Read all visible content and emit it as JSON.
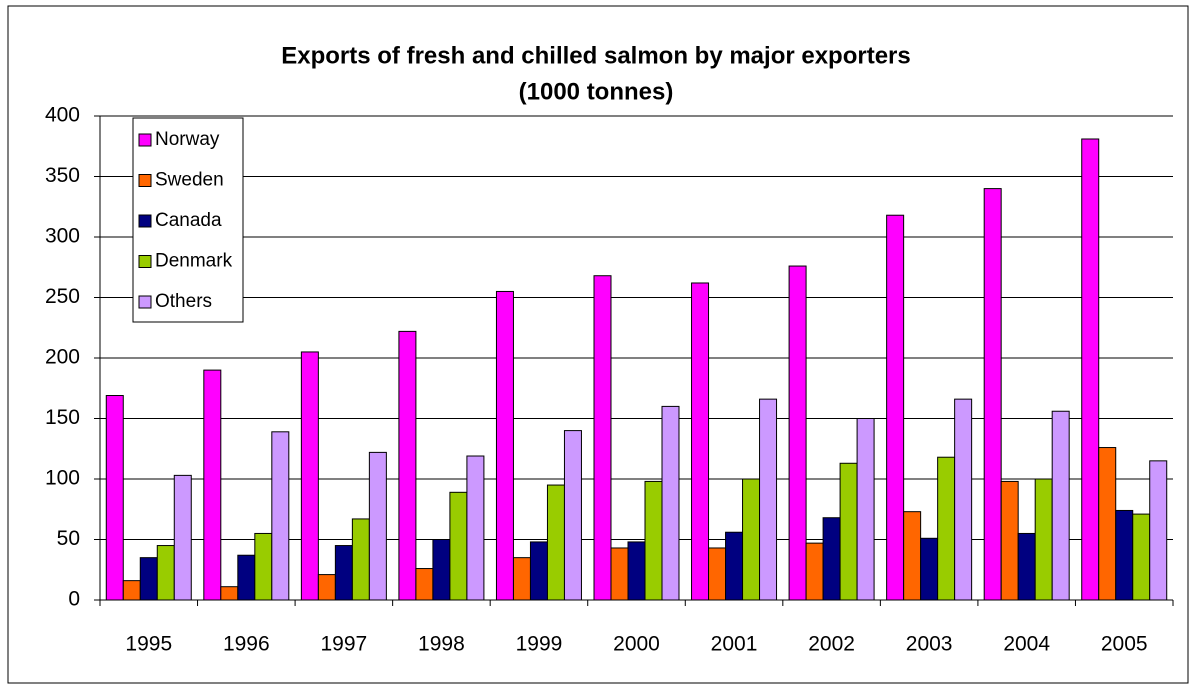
{
  "chart_data": {
    "type": "bar",
    "title": "Exports of fresh and chilled salmon by major exporters",
    "subtitle": "(1000 tonnes)",
    "categories": [
      "1995",
      "1996",
      "1997",
      "1998",
      "1999",
      "2000",
      "2001",
      "2002",
      "2003",
      "2004",
      "2005"
    ],
    "series": [
      {
        "name": "Norway",
        "color": "#ff00ff",
        "values": [
          169,
          190,
          205,
          222,
          255,
          268,
          262,
          276,
          318,
          340,
          381
        ]
      },
      {
        "name": "Sweden",
        "color": "#ff6600",
        "values": [
          16,
          11,
          21,
          26,
          35,
          43,
          43,
          47,
          73,
          98,
          126
        ]
      },
      {
        "name": "Canada",
        "color": "#000080",
        "values": [
          35,
          37,
          45,
          50,
          48,
          48,
          56,
          68,
          51,
          55,
          74
        ]
      },
      {
        "name": "Denmark",
        "color": "#99cc00",
        "values": [
          45,
          55,
          67,
          89,
          95,
          98,
          100,
          113,
          118,
          100,
          71
        ]
      },
      {
        "name": "Others",
        "color": "#cc99ff",
        "values": [
          103,
          139,
          122,
          119,
          140,
          160,
          166,
          150,
          166,
          156,
          115
        ]
      }
    ],
    "ylim": [
      0,
      400
    ],
    "yticks": [
      0,
      50,
      100,
      150,
      200,
      250,
      300,
      350,
      400
    ],
    "grid": true,
    "legend": "top-left"
  }
}
